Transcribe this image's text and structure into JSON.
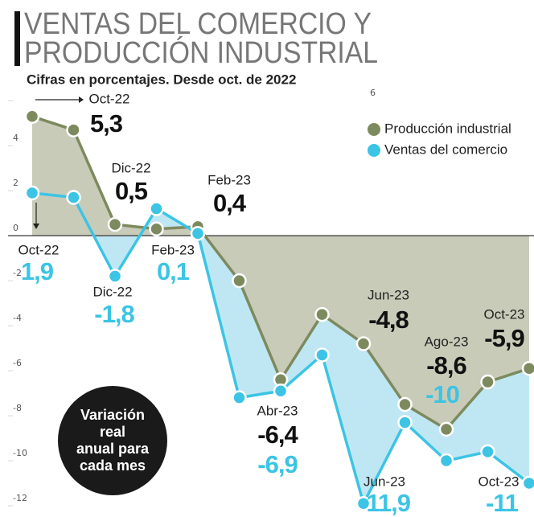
{
  "chart_data": {
    "type": "line",
    "title": [
      "VENTAS DEL COMERCIO Y",
      "PRODUCCIÓN INDUSTRIAL"
    ],
    "subtitle": "Cifras en porcentajes. Desde oct. de 2022",
    "categories": [
      "Oct-22",
      null,
      "Dic-22",
      null,
      "Feb-23",
      null,
      "Abr-23",
      null,
      "Jun-23",
      null,
      "Ago-23",
      null,
      "Oct-23"
    ],
    "series": [
      {
        "name": "Producción industrial",
        "color": "#7d8a5e",
        "area_color": "#c9cbb9",
        "values": [
          5.3,
          4.7,
          0.5,
          0.3,
          0.4,
          -2,
          -6.4,
          -3.5,
          -4.8,
          -7.5,
          -8.6,
          -6.5,
          -5.9
        ],
        "value_labels": [
          "5,3",
          null,
          "0,5",
          null,
          "0,4",
          null,
          "-6,4",
          null,
          "-4,8",
          null,
          "-8,6",
          null,
          "-5,9"
        ]
      },
      {
        "name": "Ventas del comercio",
        "color": "#3cc4e4",
        "area_color": "#bfe7f3",
        "values": [
          1.9,
          1.7,
          -1.8,
          1.2,
          0.1,
          -7.2,
          -6.9,
          -5.3,
          -11.9,
          -8.3,
          -10,
          -9.6,
          -11
        ],
        "value_labels": [
          "1,9",
          null,
          "-1,8",
          null,
          "0,1",
          null,
          "-6,9",
          null,
          "-11,9",
          null,
          "-10",
          null,
          "-11"
        ]
      }
    ],
    "ylim": [
      -12.5,
      6.9
    ],
    "yticks": [
      6,
      4,
      2,
      0,
      -2,
      -4,
      -6,
      -8,
      -10,
      -12
    ],
    "annotation": [
      "Variación",
      "real",
      "anual para",
      "cada mes"
    ]
  }
}
